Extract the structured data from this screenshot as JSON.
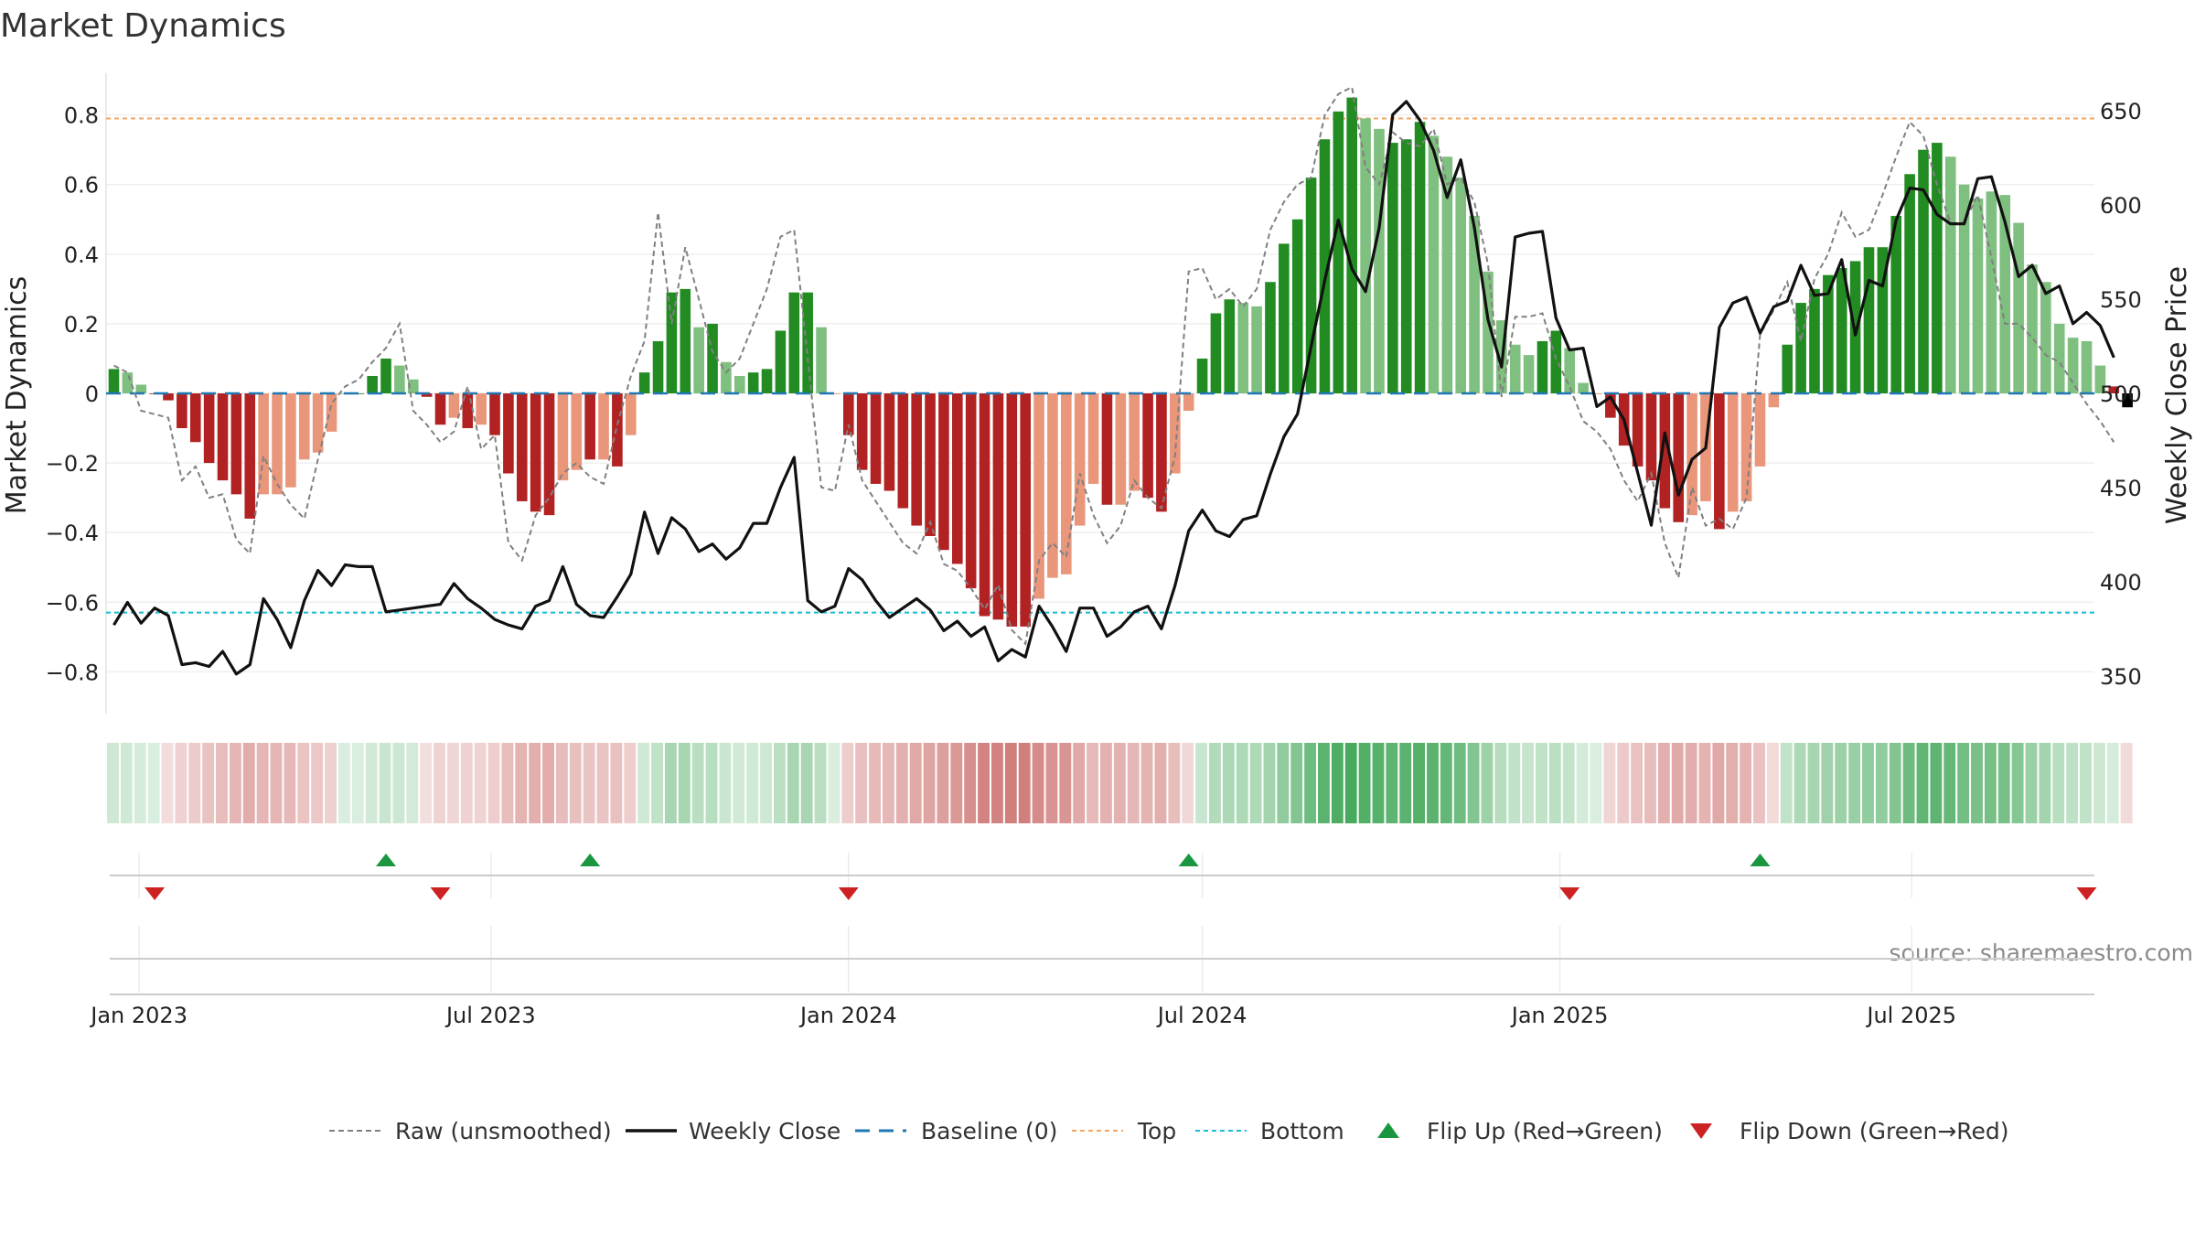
{
  "chart_data": {
    "type": "bar",
    "title": "Market Dynamics",
    "ylabel": "Market Dynamics",
    "y2label": "Weekly Close Price",
    "ylim": [
      -0.92,
      0.92
    ],
    "y2lim": [
      330,
      670
    ],
    "yticks": [
      -0.8,
      -0.6,
      -0.4,
      -0.2,
      0,
      0.2,
      0.4,
      0.6,
      0.8
    ],
    "ytick_labels": [
      "−0.8",
      "−0.6",
      "−0.4",
      "−0.2",
      "0",
      "0.2",
      "0.4",
      "0.6",
      "0.8"
    ],
    "y2ticks": [
      350,
      400,
      450,
      500,
      550,
      600,
      650
    ],
    "y2tick_labels": [
      "350",
      "400",
      "450",
      "500",
      "550",
      "600",
      "650"
    ],
    "x_start": "2022-12-19",
    "x_end": "2025-09-29",
    "xticks": [
      {
        "date": "2023-01-01",
        "label": "Jan 2023"
      },
      {
        "date": "2023-07-01",
        "label": "Jul 2023"
      },
      {
        "date": "2024-01-01",
        "label": "Jan 2024"
      },
      {
        "date": "2024-07-01",
        "label": "Jul 2024"
      },
      {
        "date": "2025-01-01",
        "label": "Jan 2025"
      },
      {
        "date": "2025-07-01",
        "label": "Jul 2025"
      }
    ],
    "top_level": 0.79,
    "bottom_level": -0.63,
    "grid": true,
    "legend_position": "bottom-center",
    "colors": {
      "strong_green": "#228B22",
      "light_green": "#7FBF7F",
      "strong_red": "#B22222",
      "light_red": "#E9967A",
      "close_line": "#111111",
      "raw_line": "#808080",
      "baseline": "#1f77b4",
      "top": "#f4a460",
      "bottom": "#17becf",
      "flip_up": "#1a9641",
      "flip_down": "#cc2222"
    },
    "start_date": "2022-12-19",
    "week_days": 7,
    "series": [
      {
        "name": "Market Dynamics",
        "values": [
          0.07,
          0.06,
          0.025,
          0,
          -0.02,
          -0.1,
          -0.14,
          -0.2,
          -0.25,
          -0.29,
          -0.36,
          -0.29,
          -0.29,
          -0.27,
          -0.19,
          -0.17,
          -0.11,
          0,
          0,
          0.05,
          0.1,
          0.08,
          0.04,
          -0.01,
          -0.09,
          -0.07,
          -0.1,
          -0.09,
          -0.12,
          -0.23,
          -0.31,
          -0.34,
          -0.35,
          -0.25,
          -0.22,
          -0.19,
          -0.19,
          -0.21,
          -0.12,
          0.06,
          0.15,
          0.29,
          0.3,
          0.19,
          0.2,
          0.09,
          0.05,
          0.06,
          0.07,
          0.18,
          0.29,
          0.29,
          0.19,
          0,
          -0.12,
          -0.22,
          -0.26,
          -0.28,
          -0.33,
          -0.38,
          -0.41,
          -0.45,
          -0.49,
          -0.56,
          -0.64,
          -0.65,
          -0.67,
          -0.67,
          -0.59,
          -0.53,
          -0.52,
          -0.38,
          -0.26,
          -0.32,
          -0.32,
          -0.28,
          -0.3,
          -0.34,
          -0.23,
          -0.05,
          0.1,
          0.23,
          0.27,
          0.26,
          0.25,
          0.32,
          0.43,
          0.5,
          0.62,
          0.73,
          0.81,
          0.85,
          0.79,
          0.76,
          0.72,
          0.73,
          0.78,
          0.74,
          0.68,
          0.62,
          0.51,
          0.35,
          0.21,
          0.14,
          0.11,
          0.15,
          0.18,
          0.13,
          0.03,
          0,
          -0.07,
          -0.15,
          -0.21,
          -0.25,
          -0.33,
          -0.37,
          -0.35,
          -0.31,
          -0.39,
          -0.34,
          -0.31,
          -0.21,
          -0.04,
          0.14,
          0.26,
          0.3,
          0.34,
          0.36,
          0.38,
          0.42,
          0.42,
          0.51,
          0.63,
          0.7,
          0.72,
          0.68,
          0.6,
          0.56,
          0.58,
          0.57,
          0.49,
          0.37,
          0.32,
          0.2,
          0.16,
          0.15,
          0.08,
          0.02,
          -0.04
        ],
        "colors": [
          "strong_green",
          "light_green",
          "light_green",
          "strong_red",
          "strong_red",
          "strong_red",
          "strong_red",
          "strong_red",
          "strong_red",
          "strong_red",
          "strong_red",
          "light_red",
          "light_red",
          "light_red",
          "light_red",
          "light_red",
          "light_red",
          "light_green",
          "strong_green",
          "strong_green",
          "strong_green",
          "light_green",
          "light_green",
          "strong_red",
          "strong_red",
          "light_red",
          "strong_red",
          "light_red",
          "strong_red",
          "strong_red",
          "strong_red",
          "strong_red",
          "strong_red",
          "light_red",
          "light_red",
          "strong_red",
          "light_red",
          "strong_red",
          "light_red",
          "strong_green",
          "strong_green",
          "strong_green",
          "strong_green",
          "light_green",
          "strong_green",
          "light_green",
          "light_green",
          "strong_green",
          "strong_green",
          "strong_green",
          "strong_green",
          "strong_green",
          "light_green",
          "light_red",
          "strong_red",
          "strong_red",
          "strong_red",
          "strong_red",
          "strong_red",
          "strong_red",
          "strong_red",
          "strong_red",
          "strong_red",
          "strong_red",
          "strong_red",
          "strong_red",
          "strong_red",
          "strong_red",
          "light_red",
          "light_red",
          "light_red",
          "light_red",
          "light_red",
          "strong_red",
          "light_red",
          "light_red",
          "strong_red",
          "strong_red",
          "light_red",
          "light_red",
          "strong_green",
          "strong_green",
          "strong_green",
          "light_green",
          "light_green",
          "strong_green",
          "strong_green",
          "strong_green",
          "strong_green",
          "strong_green",
          "strong_green",
          "strong_green",
          "light_green",
          "light_green",
          "strong_green",
          "strong_green",
          "strong_green",
          "light_green",
          "light_green",
          "light_green",
          "light_green",
          "light_green",
          "light_green",
          "light_green",
          "light_green",
          "strong_green",
          "strong_green",
          "light_green",
          "light_green",
          "light_red",
          "strong_red",
          "strong_red",
          "strong_red",
          "strong_red",
          "strong_red",
          "strong_red",
          "light_red",
          "light_red",
          "strong_red",
          "light_red",
          "light_red",
          "light_red",
          "light_red",
          "strong_green",
          "strong_green",
          "strong_green",
          "strong_green",
          "strong_green",
          "strong_green",
          "strong_green",
          "strong_green",
          "strong_green",
          "strong_green",
          "strong_green",
          "strong_green",
          "light_green",
          "light_green",
          "light_green",
          "light_green",
          "light_green",
          "light_green",
          "light_green",
          "light_green",
          "light_green",
          "light_green",
          "light_green",
          "light_green",
          "strong_red"
        ]
      },
      {
        "name": "Raw (unsmoothed)",
        "values": [
          0.08,
          0.06,
          -0.05,
          -0.06,
          -0.07,
          -0.25,
          -0.21,
          -0.3,
          -0.29,
          -0.42,
          -0.46,
          -0.18,
          -0.26,
          -0.32,
          -0.36,
          -0.19,
          -0.03,
          0.02,
          0.04,
          0.09,
          0.13,
          0.2,
          -0.05,
          -0.09,
          -0.14,
          -0.11,
          0.02,
          -0.16,
          -0.12,
          -0.43,
          -0.48,
          -0.35,
          -0.3,
          -0.23,
          -0.2,
          -0.24,
          -0.26,
          -0.09,
          0.05,
          0.15,
          0.52,
          0.2,
          0.42,
          0.27,
          0.12,
          0.06,
          0.1,
          0.2,
          0.3,
          0.45,
          0.47,
          0.1,
          -0.27,
          -0.28,
          -0.09,
          -0.25,
          -0.31,
          -0.37,
          -0.43,
          -0.46,
          -0.37,
          -0.49,
          -0.51,
          -0.56,
          -0.62,
          -0.55,
          -0.68,
          -0.72,
          -0.48,
          -0.43,
          -0.47,
          -0.23,
          -0.35,
          -0.43,
          -0.38,
          -0.25,
          -0.3,
          -0.33,
          -0.18,
          0.35,
          0.36,
          0.27,
          0.3,
          0.25,
          0.3,
          0.47,
          0.55,
          0.6,
          0.62,
          0.8,
          0.86,
          0.88,
          0.65,
          0.6,
          0.75,
          0.72,
          0.71,
          0.76,
          0.6,
          0.62,
          0.55,
          0.37,
          -0.01,
          0.22,
          0.22,
          0.23,
          0.1,
          0.02,
          -0.08,
          -0.11,
          -0.16,
          -0.25,
          -0.31,
          -0.23,
          -0.43,
          -0.53,
          -0.27,
          -0.38,
          -0.36,
          -0.39,
          -0.3,
          0.17,
          0.24,
          0.32,
          0.15,
          0.33,
          0.4,
          0.52,
          0.45,
          0.47,
          0.57,
          0.68,
          0.78,
          0.74,
          0.6,
          0.49,
          0.49,
          0.57,
          0.39,
          0.2,
          0.2,
          0.16,
          0.11,
          0.09,
          0.03,
          -0.03,
          -0.08,
          -0.14
        ]
      },
      {
        "name": "Weekly Close",
        "values": [
          377,
          389,
          378,
          386,
          382,
          356,
          357,
          355,
          363,
          351,
          356,
          391,
          380,
          365,
          390,
          406,
          398,
          409,
          408,
          408,
          384,
          385,
          386,
          387,
          388,
          399,
          391,
          386,
          380,
          377,
          375,
          387,
          390,
          408,
          388,
          382,
          381,
          392,
          404,
          437,
          415,
          434,
          428,
          416,
          420,
          412,
          418,
          431,
          431,
          450,
          466,
          390,
          384,
          387,
          407,
          401,
          390,
          381,
          386,
          391,
          385,
          374,
          379,
          371,
          376,
          358,
          364,
          360,
          387,
          376,
          363,
          386,
          386,
          371,
          376,
          384,
          387,
          375,
          398,
          427,
          438,
          427,
          424,
          433,
          435,
          457,
          477,
          489,
          525,
          560,
          592,
          566,
          554,
          588,
          648,
          655,
          645,
          629,
          604,
          624,
          588,
          539,
          514,
          583,
          585,
          586,
          540,
          523,
          524,
          493,
          498,
          486,
          458,
          430,
          479,
          446,
          465,
          471,
          535,
          548,
          551,
          532,
          546,
          549,
          568,
          552,
          553,
          571,
          531,
          560,
          557,
          592,
          609,
          608,
          595,
          590,
          590,
          614,
          615,
          591,
          562,
          568,
          553,
          557,
          537,
          543,
          536,
          519
        ]
      }
    ],
    "flip_up_dates": [
      "2023-05-08",
      "2023-08-21",
      "2024-06-24",
      "2025-04-14"
    ],
    "flip_down_dates": [
      "2023-01-09",
      "2023-06-05",
      "2024-01-01",
      "2025-01-06",
      "2025-09-29"
    ],
    "legend": [
      {
        "key": "raw",
        "label": "Raw (unsmoothed)"
      },
      {
        "key": "close",
        "label": "Weekly Close"
      },
      {
        "key": "baseline",
        "label": "Baseline (0)"
      },
      {
        "key": "top",
        "label": "Top"
      },
      {
        "key": "bottom",
        "label": "Bottom"
      },
      {
        "key": "flip_up",
        "label": "Flip Up (Red→Green)"
      },
      {
        "key": "flip_down",
        "label": "Flip Down (Green→Red)"
      }
    ],
    "source": "source: sharemaestro.com"
  }
}
